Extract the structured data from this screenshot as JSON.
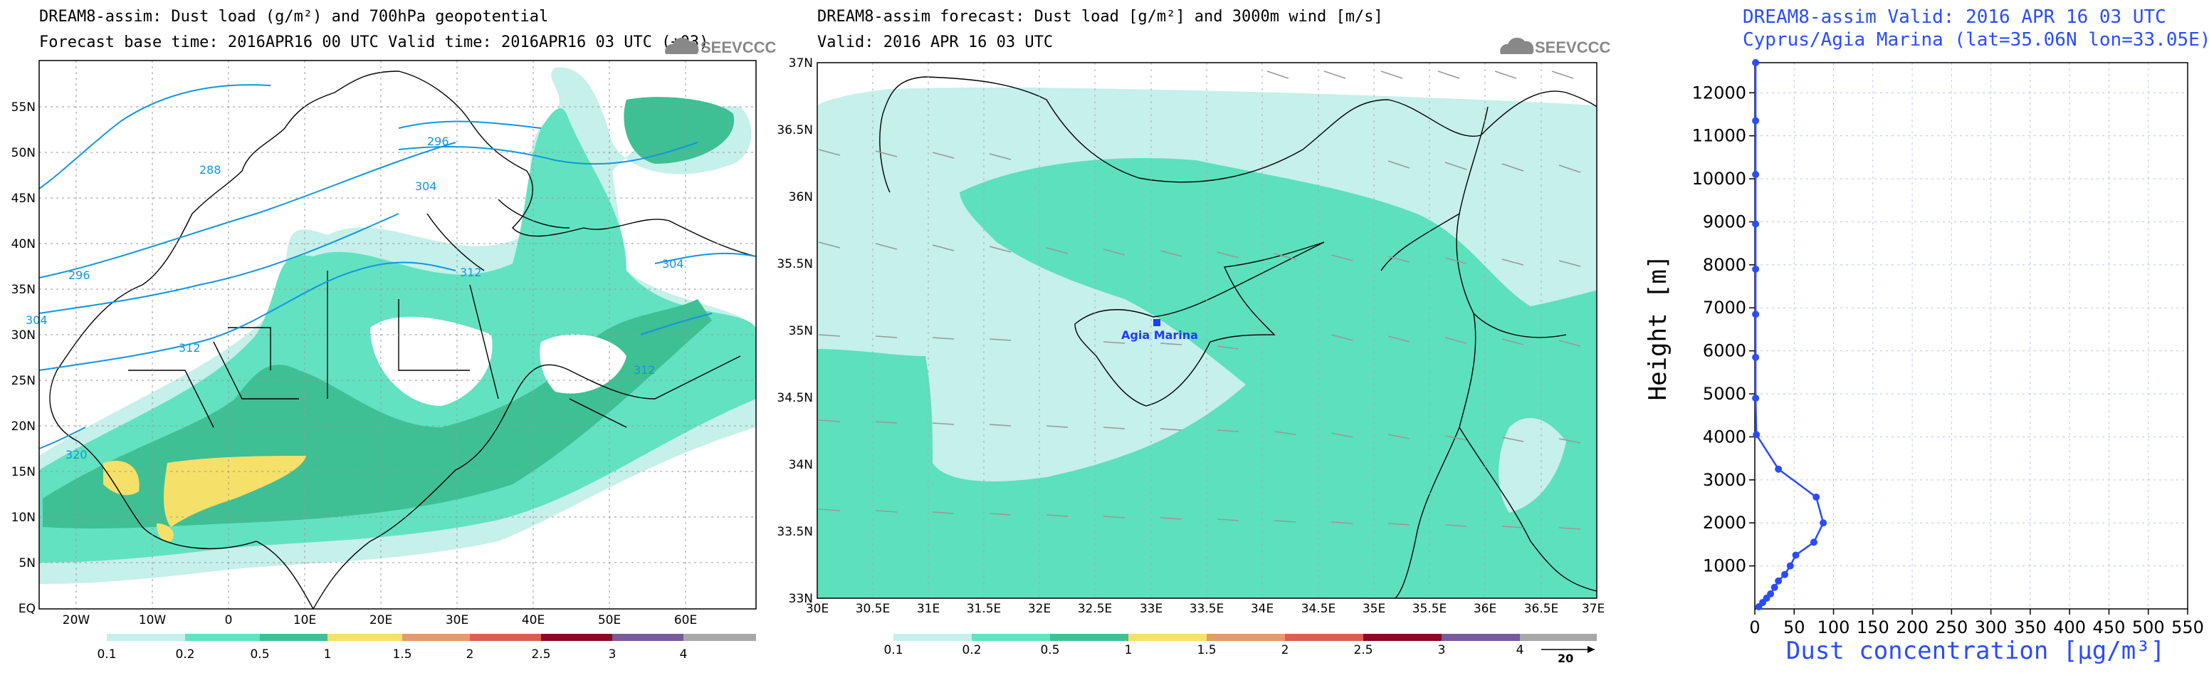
{
  "map1": {
    "title1": "DREAM8-assim: Dust load (g/m²) and 700hPa geopotential",
    "title2": "Forecast base time: 2016APR16 00 UTC  Valid time: 2016APR16 03 UTC  (+03)",
    "logo": "SEEVCCC",
    "lat_labels": [
      "55N",
      "50N",
      "45N",
      "40N",
      "35N",
      "30N",
      "25N",
      "20N",
      "15N",
      "10N",
      "5N",
      "EQ"
    ],
    "lon_labels": [
      "20W",
      "10W",
      "0",
      "10E",
      "20E",
      "30E",
      "40E",
      "50E",
      "60E"
    ],
    "contour_labels": [
      "296",
      "288",
      "304",
      "312",
      "296",
      "312",
      "304",
      "312",
      "320",
      "304"
    ],
    "colorbar_labels": [
      "0.1",
      "0.2",
      "0.5",
      "1",
      "1.5",
      "2",
      "2.5",
      "3",
      "4"
    ]
  },
  "map2": {
    "title1": "DREAM8-assim forecast: Dust load [g/m²] and 3000m wind [m/s]",
    "title2": "Valid: 2016 APR 16  03 UTC",
    "logo": "SEEVCCC",
    "lat_labels": [
      "37N",
      "36.5N",
      "36N",
      "35.5N",
      "35N",
      "34.5N",
      "34N",
      "33.5N",
      "33N"
    ],
    "lon_labels": [
      "30E",
      "30.5E",
      "31E",
      "31.5E",
      "32E",
      "32.5E",
      "33E",
      "33.5E",
      "34E",
      "34.5E",
      "35E",
      "35.5E",
      "36E",
      "36.5E",
      "37E"
    ],
    "station_label": "Agia Marina",
    "colorbar_labels": [
      "0.1",
      "0.2",
      "0.5",
      "1",
      "1.5",
      "2",
      "2.5",
      "3",
      "4"
    ],
    "wind_ref": "20"
  },
  "profile": {
    "title1": "DREAM8-assim  Valid: 2016 APR 16  03 UTC",
    "title2": "Cyprus/Agia Marina (lat=35.06N lon=33.05E)",
    "ylabel": "Height [m]",
    "xlabel": "Dust concentration [μg/m³]"
  },
  "chart_data": {
    "type": "line",
    "title": "DREAM8-assim  Valid: 2016 APR 16  03 UTC",
    "subtitle": "Cyprus/Agia Marina (lat=35.06N lon=33.05E)",
    "xlabel": "Dust concentration [μg/m³]",
    "ylabel": "Height [m]",
    "xlim": [
      0,
      550
    ],
    "ylim": [
      0,
      12700
    ],
    "x_ticks": [
      0,
      50,
      100,
      150,
      200,
      250,
      300,
      350,
      400,
      450,
      500,
      550
    ],
    "y_ticks": [
      1000,
      2000,
      3000,
      4000,
      5000,
      6000,
      7000,
      8000,
      9000,
      10000,
      11000,
      12000
    ],
    "grid": true,
    "color": "#2a4cff",
    "series": [
      {
        "points": [
          [
            5,
            50
          ],
          [
            10,
            150
          ],
          [
            15,
            250
          ],
          [
            20,
            350
          ],
          [
            25,
            500
          ],
          [
            30,
            650
          ],
          [
            38,
            800
          ],
          [
            45,
            1000
          ],
          [
            52,
            1250
          ],
          [
            75,
            1550
          ],
          [
            87,
            2000
          ],
          [
            78,
            2600
          ],
          [
            30,
            3250
          ],
          [
            2,
            4050
          ],
          [
            1,
            4900
          ],
          [
            1,
            5850
          ],
          [
            1,
            6850
          ],
          [
            1,
            7900
          ],
          [
            1,
            8950
          ],
          [
            1,
            10100
          ],
          [
            1,
            11350
          ],
          [
            1,
            12700
          ]
        ]
      }
    ]
  }
}
